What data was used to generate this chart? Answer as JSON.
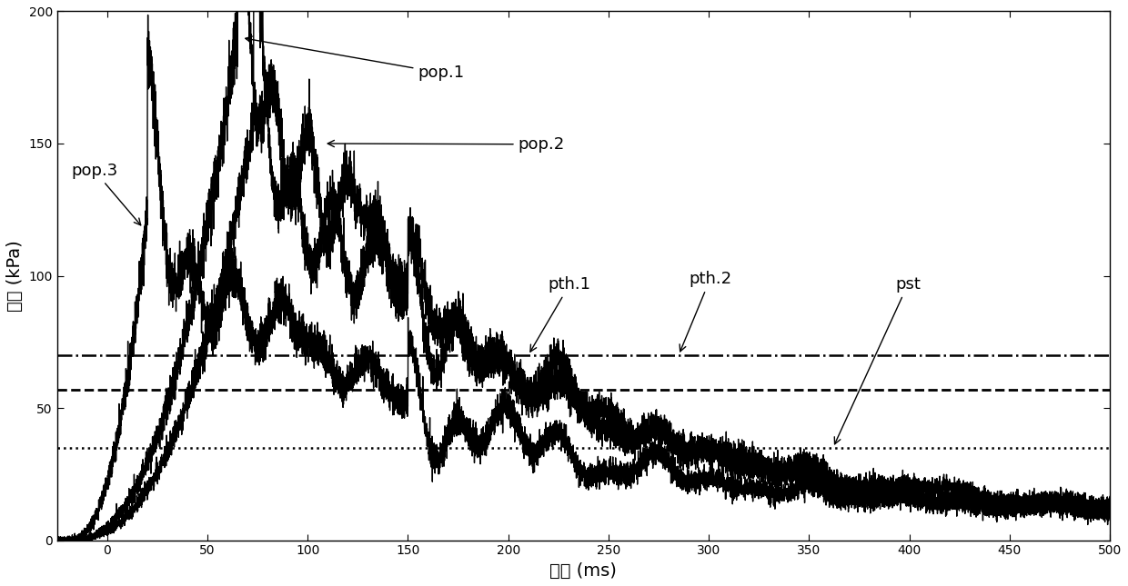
{
  "xlim": [
    -25,
    500
  ],
  "ylim": [
    0,
    200
  ],
  "xticks": [
    0,
    50,
    100,
    150,
    200,
    250,
    300,
    350,
    400,
    450,
    500
  ],
  "yticks": [
    0,
    50,
    100,
    150,
    200
  ],
  "xlabel": "时间 (ms)",
  "ylabel": "油压 (kPa)",
  "line_color": "#000000",
  "hline1_y": 70,
  "hline2_y": 57,
  "hline3_y": 35,
  "figsize": [
    12.4,
    6.45
  ],
  "dpi": 100
}
